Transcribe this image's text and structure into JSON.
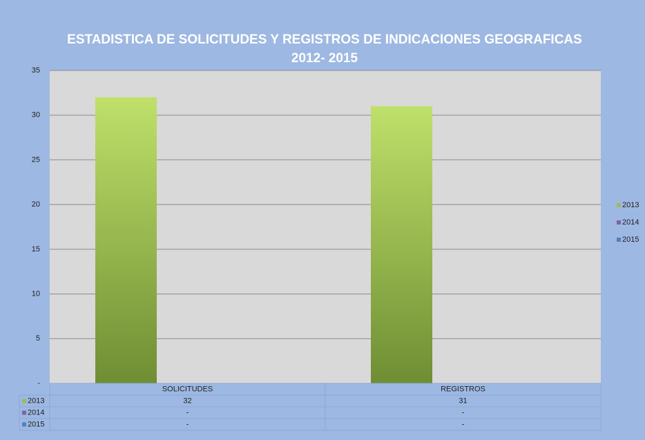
{
  "chart_data": {
    "type": "bar",
    "title": [
      "ESTADISTICA DE SOLICITUDES Y REGISTROS DE INDICACIONES GEOGRAFICAS",
      "2012- 2015"
    ],
    "categories": [
      "SOLICITUDES",
      "REGISTROS"
    ],
    "series": [
      {
        "name": "2013",
        "color": "#9bbb59",
        "values": [
          32,
          31
        ]
      },
      {
        "name": "2014",
        "color": "#8064a2",
        "values": [
          null,
          null
        ],
        "value_labels": [
          "-",
          "-"
        ]
      },
      {
        "name": "2015",
        "color": "#4f81bd",
        "values": [
          null,
          null
        ],
        "value_labels": [
          "-",
          "-"
        ]
      }
    ],
    "ylim": [
      0,
      35
    ],
    "yticks": [
      {
        "value": 0,
        "label": "-"
      },
      5,
      10,
      15,
      20,
      25,
      30,
      35
    ],
    "grid": true,
    "legend": "right",
    "data_table": true
  }
}
